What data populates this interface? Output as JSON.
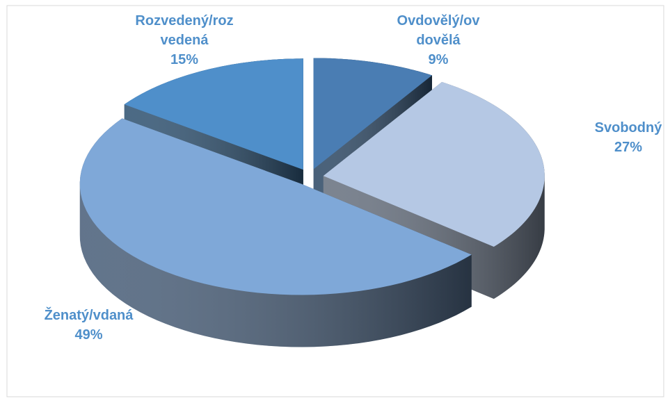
{
  "chart_data": {
    "type": "pie",
    "categories": [
      "Ovdovělý/ovdovělá",
      "Svobodný",
      "Ženatý/vdaná",
      "Rozvedený/rozvedená"
    ],
    "values": [
      9,
      27,
      49,
      15
    ],
    "value_labels": [
      "9%",
      "27%",
      "49%",
      "15%"
    ],
    "colors": [
      "#4a7db3",
      "#b5c8e4",
      "#7fa8d8",
      "#4f8fca"
    ]
  }
}
